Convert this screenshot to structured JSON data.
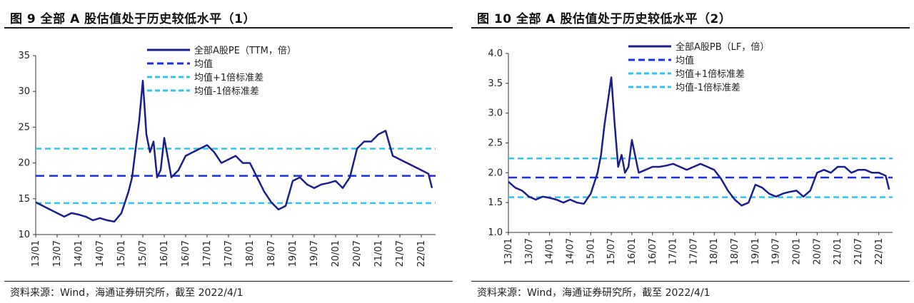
{
  "colors": {
    "series": "#1a1f8c",
    "mean": "#1a2fd6",
    "band": "#33c3ea"
  },
  "charts": [
    {
      "title": "图 9 全部 A 股估值处于历史较低水平（1）",
      "source": "资料来源：Wind，海通证券研究所，截至 2022/4/1",
      "legend": [
        "全部A股PE（TTM，倍）",
        "均值",
        "均值+1倍标准差",
        "均值-1倍标准差"
      ],
      "y_ticks": [
        "10",
        "15",
        "20",
        "25",
        "30",
        "35"
      ]
    },
    {
      "title": "图 10 全部 A 股估值处于历史较低水平（2）",
      "source": "资料来源：Wind，海通证券研究所，截至 2022/4/1",
      "legend": [
        "全部A股PB（LF，倍）",
        "均值",
        "均值+1倍标准差",
        "均值-1倍标准差"
      ],
      "y_ticks": [
        "1.0",
        "1.5",
        "2.0",
        "2.5",
        "3.0",
        "3.5",
        "4.0"
      ]
    }
  ],
  "chart_data": [
    {
      "type": "line",
      "title": "全部A股估值处于历史较低水平（1）",
      "ylabel": "",
      "ylim": [
        10,
        35
      ],
      "x_ticks": [
        "13/01",
        "13/07",
        "14/01",
        "14/07",
        "15/01",
        "15/07",
        "16/01",
        "16/07",
        "17/01",
        "17/07",
        "18/01",
        "18/07",
        "19/01",
        "19/07",
        "20/01",
        "20/07",
        "21/01",
        "21/07",
        "22/01"
      ],
      "series": [
        {
          "name": "全部A股PE（TTM，倍）",
          "x": [
            0,
            2,
            4,
            6,
            8,
            10,
            12,
            14,
            16,
            18,
            20,
            22,
            24,
            26,
            27,
            28,
            29,
            30,
            31,
            32,
            33,
            34,
            35,
            36,
            38,
            40,
            42,
            44,
            46,
            48,
            50,
            52,
            54,
            56,
            58,
            60,
            62,
            64,
            66,
            68,
            70,
            72,
            74,
            76,
            78,
            80,
            82,
            84,
            86,
            88,
            90,
            92,
            94,
            96,
            98,
            100,
            102,
            104,
            106,
            108,
            110,
            111
          ],
          "y": [
            14.5,
            14,
            13.5,
            13,
            12.5,
            13,
            12.8,
            12.5,
            12,
            12.3,
            12,
            11.8,
            13,
            16,
            18,
            22,
            26,
            31.5,
            24,
            21.5,
            23,
            18,
            19,
            23.5,
            18,
            19,
            21,
            21.5,
            22,
            22.5,
            21.5,
            20,
            20.5,
            21,
            20,
            20,
            18,
            16,
            14.5,
            13.5,
            14,
            17.5,
            18,
            17,
            16.5,
            17,
            17.2,
            17.5,
            16.5,
            18,
            22,
            23,
            23,
            24,
            24.5,
            21,
            20.5,
            20,
            19.5,
            19,
            18.5,
            16.5
          ]
        },
        {
          "name": "均值",
          "value": 18.2
        },
        {
          "name": "均值+1倍标准差",
          "value": 22.0
        },
        {
          "name": "均值-1倍标准差",
          "value": 14.4
        }
      ]
    },
    {
      "type": "line",
      "title": "全部A股估值处于历史较低水平（2）",
      "ylabel": "",
      "ylim": [
        1.0,
        4.0
      ],
      "x_ticks": [
        "13/01",
        "13/07",
        "14/01",
        "14/07",
        "15/01",
        "15/07",
        "16/01",
        "16/07",
        "17/01",
        "17/07",
        "18/01",
        "18/07",
        "19/01",
        "19/07",
        "20/01",
        "20/07",
        "21/01",
        "21/07",
        "22/01"
      ],
      "series": [
        {
          "name": "全部A股PB（LF，倍）",
          "x": [
            0,
            2,
            4,
            6,
            8,
            10,
            12,
            14,
            16,
            18,
            20,
            22,
            24,
            26,
            27,
            28,
            29,
            30,
            31,
            32,
            33,
            34,
            35,
            36,
            38,
            40,
            42,
            44,
            46,
            48,
            50,
            52,
            54,
            56,
            58,
            60,
            62,
            64,
            66,
            68,
            70,
            72,
            74,
            76,
            78,
            80,
            82,
            84,
            86,
            88,
            90,
            92,
            94,
            96,
            98,
            100,
            102,
            104,
            106,
            108,
            110,
            111
          ],
          "y": [
            1.85,
            1.75,
            1.7,
            1.6,
            1.55,
            1.6,
            1.58,
            1.55,
            1.5,
            1.55,
            1.5,
            1.48,
            1.65,
            2.0,
            2.3,
            2.8,
            3.2,
            3.6,
            2.8,
            2.1,
            2.3,
            2.0,
            2.1,
            2.55,
            2.0,
            2.05,
            2.1,
            2.1,
            2.12,
            2.15,
            2.1,
            2.05,
            2.1,
            2.15,
            2.1,
            2.05,
            1.9,
            1.7,
            1.55,
            1.45,
            1.5,
            1.8,
            1.75,
            1.65,
            1.6,
            1.65,
            1.68,
            1.7,
            1.6,
            1.7,
            2.0,
            2.05,
            2.0,
            2.1,
            2.1,
            2.0,
            2.05,
            2.05,
            2.0,
            2.0,
            1.95,
            1.72
          ]
        },
        {
          "name": "均值",
          "value": 1.92
        },
        {
          "name": "均值+1倍标准差",
          "value": 2.24
        },
        {
          "name": "均值-1倍标准差",
          "value": 1.59
        }
      ]
    }
  ]
}
